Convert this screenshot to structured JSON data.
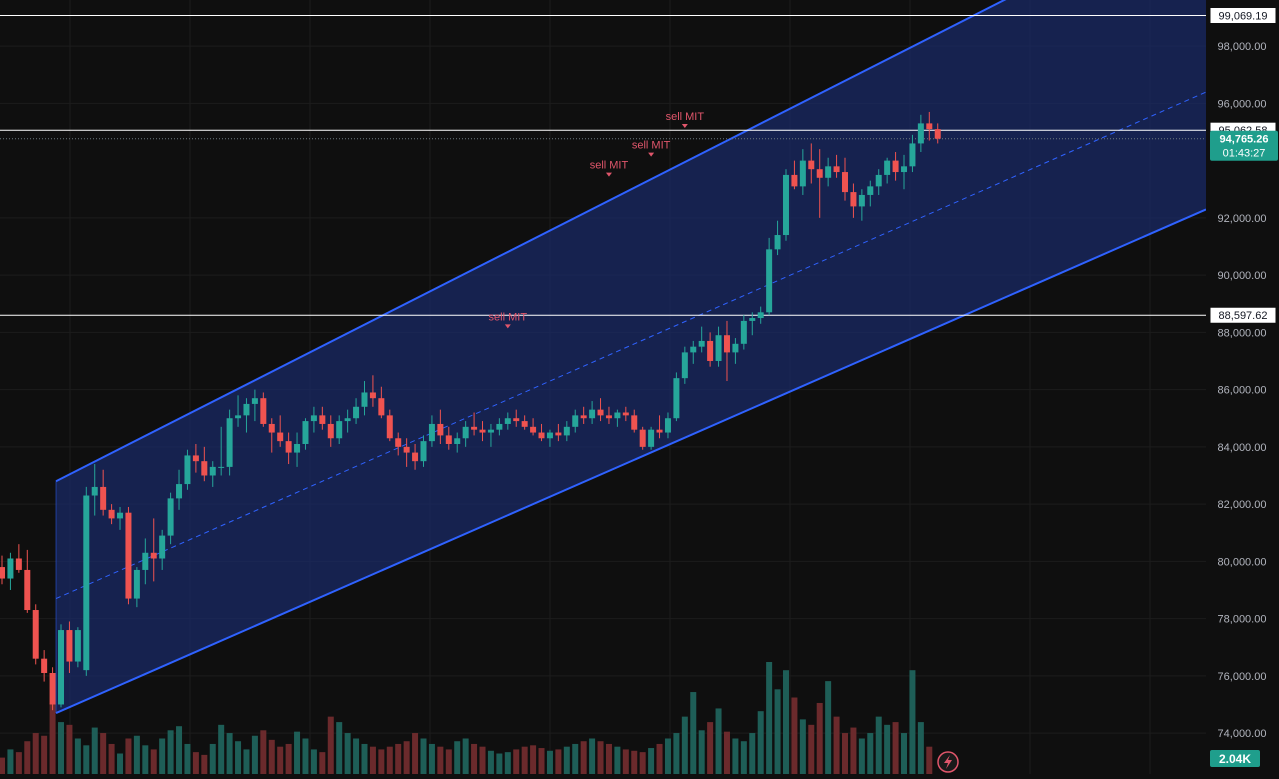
{
  "chart_data": {
    "type": "candlestick",
    "price_axis": {
      "ticks": [
        74000,
        76000,
        78000,
        80000,
        82000,
        84000,
        86000,
        88000,
        90000,
        92000,
        96000,
        98000
      ],
      "tick_labels": [
        "74,000.00",
        "76,000.00",
        "78,000.00",
        "80,000.00",
        "82,000.00",
        "84,000.00",
        "86,000.00",
        "88,000.00",
        "90,000.00",
        "92,000.00",
        "96,000.00",
        "98,000.00"
      ],
      "range": [
        73000,
        99600
      ]
    },
    "horizontal_levels": [
      {
        "value": 99069.19,
        "label": "99,069.19"
      },
      {
        "value": 95062.58,
        "label": "95,062.58"
      },
      {
        "value": 88597.62,
        "label": "88,597.62"
      }
    ],
    "last_price": {
      "value": 94765.26,
      "label": "94,765.26",
      "countdown": "01:43:27"
    },
    "volume_badge": "2.04K",
    "channel": {
      "upper": [
        [
          0,
          82800
        ],
        [
          88,
          99700
        ]
      ],
      "middle": [
        [
          0,
          78700
        ],
        [
          108,
          96700
        ]
      ],
      "lower": [
        [
          0,
          74700
        ],
        [
          108,
          92600
        ]
      ]
    },
    "annotations": [
      {
        "label": "sell MIT",
        "index": 60,
        "value": 88000
      },
      {
        "label": "sell MIT",
        "index": 72,
        "value": 93300
      },
      {
        "label": "sell MIT",
        "index": 77,
        "value": 94000
      },
      {
        "label": "sell MIT",
        "index": 81,
        "value": 95000
      }
    ],
    "ohlc": [
      [
        79800,
        80200,
        79200,
        79400
      ],
      [
        79400,
        80300,
        79000,
        80100
      ],
      [
        80100,
        80600,
        79600,
        79700
      ],
      [
        79700,
        80400,
        78200,
        78300
      ],
      [
        78300,
        78500,
        76400,
        76600
      ],
      [
        76600,
        76900,
        75800,
        76100
      ],
      [
        76100,
        76300,
        74800,
        75000
      ],
      [
        75000,
        77800,
        74900,
        77600
      ],
      [
        77600,
        77900,
        76100,
        76500
      ],
      [
        76500,
        77700,
        76300,
        77600
      ],
      [
        76200,
        82600,
        76000,
        82300
      ],
      [
        82300,
        83400,
        81600,
        82600
      ],
      [
        82600,
        83200,
        81600,
        81800
      ],
      [
        81800,
        82000,
        81300,
        81500
      ],
      [
        81500,
        81900,
        81100,
        81700
      ],
      [
        81700,
        81900,
        78500,
        78700
      ],
      [
        78700,
        79800,
        78400,
        79700
      ],
      [
        79700,
        80800,
        79200,
        80300
      ],
      [
        80300,
        81500,
        79300,
        80100
      ],
      [
        80100,
        81100,
        79700,
        80900
      ],
      [
        80900,
        82400,
        80600,
        82200
      ],
      [
        82200,
        83200,
        81800,
        82700
      ],
      [
        82700,
        83900,
        82500,
        83700
      ],
      [
        83700,
        84100,
        83100,
        83500
      ],
      [
        83500,
        84000,
        82800,
        83000
      ],
      [
        83000,
        83500,
        82600,
        83300
      ],
      [
        83300,
        84700,
        83000,
        83300
      ],
      [
        83300,
        85300,
        83000,
        85000
      ],
      [
        85000,
        85800,
        84700,
        85100
      ],
      [
        85100,
        85700,
        84500,
        85500
      ],
      [
        85500,
        86000,
        84900,
        85700
      ],
      [
        85700,
        85900,
        84700,
        84800
      ],
      [
        84800,
        85000,
        83800,
        84500
      ],
      [
        84500,
        85100,
        84000,
        84200
      ],
      [
        84200,
        84500,
        83400,
        83800
      ],
      [
        83800,
        84500,
        83300,
        84100
      ],
      [
        84100,
        85000,
        83900,
        84900
      ],
      [
        84900,
        85400,
        84500,
        85100
      ],
      [
        85100,
        85400,
        84600,
        84800
      ],
      [
        84800,
        85100,
        84000,
        84300
      ],
      [
        84300,
        85100,
        84100,
        84900
      ],
      [
        84900,
        85300,
        84500,
        85000
      ],
      [
        85000,
        85700,
        84800,
        85400
      ],
      [
        85400,
        86300,
        85100,
        85900
      ],
      [
        85900,
        86500,
        85400,
        85700
      ],
      [
        85700,
        86100,
        85000,
        85100
      ],
      [
        85100,
        85300,
        84200,
        84300
      ],
      [
        84300,
        84500,
        83700,
        84000
      ],
      [
        84000,
        84300,
        83300,
        83800
      ],
      [
        83800,
        84100,
        83200,
        83500
      ],
      [
        83500,
        84400,
        83300,
        84200
      ],
      [
        84200,
        85100,
        84000,
        84800
      ],
      [
        84800,
        85300,
        84100,
        84400
      ],
      [
        84400,
        84700,
        83900,
        84100
      ],
      [
        84100,
        84500,
        83800,
        84300
      ],
      [
        84300,
        84900,
        84000,
        84700
      ],
      [
        84700,
        85200,
        84400,
        84600
      ],
      [
        84600,
        84900,
        84200,
        84500
      ],
      [
        84500,
        84800,
        84000,
        84600
      ],
      [
        84600,
        85000,
        84400,
        84800
      ],
      [
        84800,
        85200,
        84600,
        85000
      ],
      [
        85000,
        85300,
        84700,
        84900
      ],
      [
        84900,
        85100,
        84600,
        84700
      ],
      [
        84700,
        85000,
        84400,
        84500
      ],
      [
        84500,
        84800,
        84200,
        84300
      ],
      [
        84300,
        84600,
        84000,
        84500
      ],
      [
        84500,
        84800,
        84200,
        84400
      ],
      [
        84400,
        84900,
        84200,
        84700
      ],
      [
        84700,
        85300,
        84500,
        85100
      ],
      [
        85100,
        85400,
        84800,
        85000
      ],
      [
        85000,
        85600,
        84800,
        85300
      ],
      [
        85300,
        85700,
        84900,
        85100
      ],
      [
        85100,
        85400,
        84800,
        85000
      ],
      [
        85000,
        85300,
        84700,
        85200
      ],
      [
        85200,
        85400,
        84900,
        85100
      ],
      [
        85100,
        85300,
        84500,
        84600
      ],
      [
        84600,
        84700,
        83900,
        84000
      ],
      [
        84000,
        84700,
        83900,
        84600
      ],
      [
        84600,
        85100,
        84300,
        84500
      ],
      [
        84500,
        85200,
        84300,
        85000
      ],
      [
        85000,
        86600,
        84900,
        86400
      ],
      [
        86400,
        87500,
        86200,
        87300
      ],
      [
        87300,
        87700,
        86900,
        87500
      ],
      [
        87500,
        88200,
        87300,
        87700
      ],
      [
        87700,
        88000,
        86800,
        87000
      ],
      [
        87000,
        88200,
        86800,
        87900
      ],
      [
        87900,
        88400,
        86300,
        87300
      ],
      [
        87300,
        87800,
        86900,
        87600
      ],
      [
        87600,
        88600,
        87400,
        88400
      ],
      [
        88400,
        88700,
        87900,
        88500
      ],
      [
        88500,
        88900,
        88300,
        88700
      ],
      [
        88700,
        91300,
        88600,
        90900
      ],
      [
        90900,
        91900,
        90700,
        91400
      ],
      [
        91400,
        93700,
        91200,
        93500
      ],
      [
        93500,
        94000,
        93000,
        93100
      ],
      [
        93100,
        94400,
        92800,
        94000
      ],
      [
        94000,
        94600,
        93200,
        93700
      ],
      [
        93700,
        94400,
        92000,
        93400
      ],
      [
        93400,
        94100,
        93100,
        93800
      ],
      [
        93800,
        94200,
        93400,
        93600
      ],
      [
        93600,
        94100,
        92600,
        92900
      ],
      [
        92900,
        93200,
        92000,
        92400
      ],
      [
        92400,
        93000,
        91900,
        92800
      ],
      [
        92800,
        93300,
        92400,
        93100
      ],
      [
        93100,
        93700,
        92800,
        93500
      ],
      [
        93500,
        94100,
        93200,
        94000
      ],
      [
        94000,
        94300,
        93300,
        93600
      ],
      [
        93600,
        94200,
        93000,
        93800
      ],
      [
        93800,
        94900,
        93600,
        94600
      ],
      [
        94600,
        95600,
        94300,
        95300
      ],
      [
        95300,
        95700,
        94700,
        95100
      ],
      [
        95100,
        95300,
        94600,
        94765.26
      ]
    ],
    "volume": [
      120,
      180,
      160,
      240,
      300,
      280,
      520,
      380,
      360,
      260,
      210,
      340,
      300,
      220,
      150,
      260,
      280,
      210,
      180,
      260,
      320,
      350,
      220,
      160,
      140,
      220,
      360,
      300,
      240,
      180,
      280,
      320,
      250,
      200,
      220,
      310,
      260,
      180,
      160,
      420,
      380,
      300,
      260,
      220,
      200,
      180,
      200,
      220,
      240,
      300,
      260,
      220,
      200,
      180,
      240,
      260,
      220,
      200,
      170,
      150,
      160,
      180,
      200,
      210,
      190,
      170,
      180,
      200,
      220,
      240,
      260,
      240,
      220,
      200,
      180,
      170,
      160,
      190,
      220,
      260,
      300,
      420,
      600,
      320,
      380,
      480,
      310,
      260,
      240,
      300,
      460,
      820,
      620,
      760,
      560,
      400,
      360,
      520,
      680,
      420,
      300,
      340,
      260,
      300,
      420,
      360,
      380,
      300,
      760,
      380,
      200
    ]
  },
  "ui": {
    "volume_indicator_icon": "lightning-icon"
  },
  "colors": {
    "bull": "#26a69a",
    "bear": "#ef5350",
    "channel": "#2f62ff",
    "channel_fill": "#1a2a66",
    "annotation": "#e0566b",
    "level": "#ffffff",
    "last_price_bg": "#1f9e8c"
  }
}
